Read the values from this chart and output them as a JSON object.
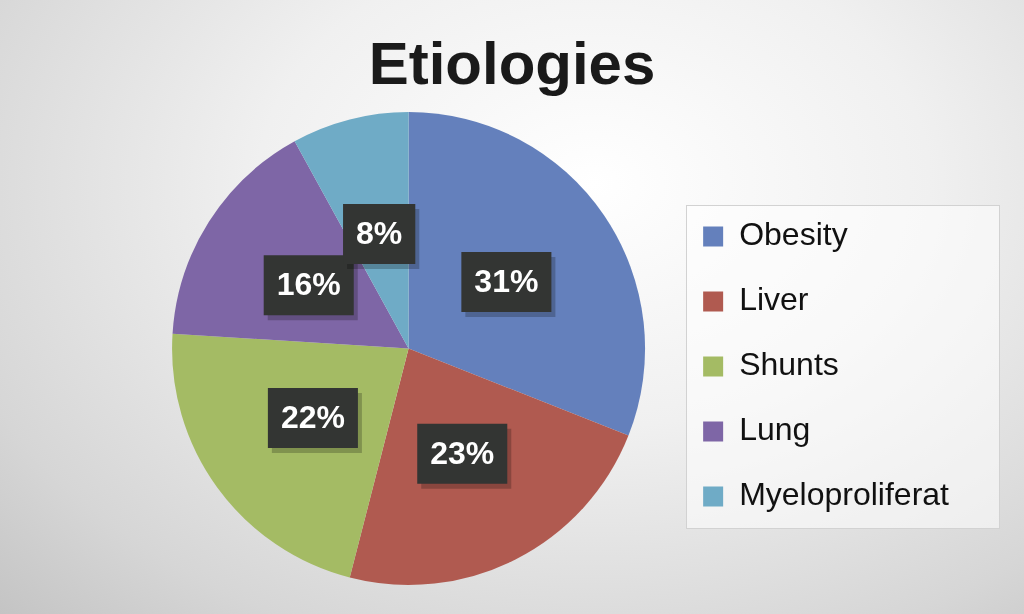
{
  "chart_data": {
    "type": "pie",
    "title": "Etiologies",
    "categories": [
      "Obesity",
      "Liver",
      "Shunts",
      "Lung",
      "Myeloproliferat"
    ],
    "values": [
      31,
      23,
      22,
      16,
      8
    ],
    "colors": [
      "#6480bc",
      "#b05a50",
      "#a4bb64",
      "#7e66a6",
      "#6fabc6"
    ],
    "value_labels": [
      "31%",
      "23%",
      "22%",
      "16%",
      "8%"
    ],
    "legend": "right"
  }
}
